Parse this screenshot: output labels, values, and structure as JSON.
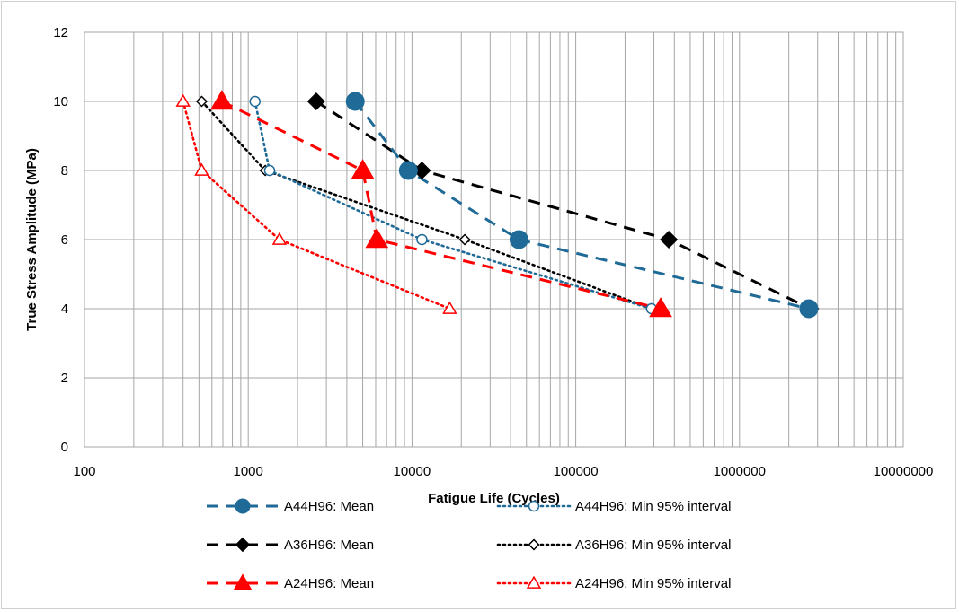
{
  "chart_data": {
    "type": "line",
    "title": "",
    "xlabel": "Fatigue Life (Cycles)",
    "ylabel": "True Stress Amplitude (MPa)",
    "xscale": "log",
    "xlim": [
      100,
      10000000
    ],
    "ylim": [
      0,
      12
    ],
    "x_ticks": [
      "100",
      "1000",
      "10000",
      "100000",
      "1000000",
      "10000000"
    ],
    "y_ticks": [
      "0",
      "2",
      "4",
      "6",
      "8",
      "10",
      "12"
    ],
    "grid": "on",
    "legend_position": "bottom",
    "series": [
      {
        "name": "A44H96: Mean",
        "color": "#1f6a96",
        "line": "dashed",
        "marker": "filled-circle",
        "points": [
          [
            4500,
            10
          ],
          [
            9500,
            8
          ],
          [
            45000,
            6
          ],
          [
            2650000,
            4
          ]
        ]
      },
      {
        "name": "A44H96: Min 95% interval",
        "color": "#1f6a96",
        "line": "dotted",
        "marker": "open-circle",
        "points": [
          [
            1100,
            10
          ],
          [
            1350,
            8
          ],
          [
            11500,
            6
          ],
          [
            290000,
            4
          ]
        ]
      },
      {
        "name": "A36H96:  Mean",
        "color": "#000000",
        "line": "dashed",
        "marker": "filled-diamond",
        "points": [
          [
            2600,
            10
          ],
          [
            11500,
            8
          ],
          [
            370000,
            6
          ],
          [
            2700000,
            4
          ]
        ]
      },
      {
        "name": "A36H96:  Min 95% interval",
        "color": "#000000",
        "line": "dotted",
        "marker": "open-diamond",
        "points": [
          [
            520,
            10
          ],
          [
            1270,
            8
          ],
          [
            21000,
            6
          ],
          [
            290000,
            4
          ]
        ]
      },
      {
        "name": "A24H96: Mean",
        "color": "#ff0000",
        "line": "dashed",
        "marker": "filled-triangle",
        "points": [
          [
            690,
            10
          ],
          [
            5000,
            8
          ],
          [
            6100,
            6
          ],
          [
            330000,
            4
          ]
        ]
      },
      {
        "name": "A24H96: Min 95% interval",
        "color": "#ff0000",
        "line": "dotted",
        "marker": "open-triangle",
        "points": [
          [
            400,
            10
          ],
          [
            520,
            8
          ],
          [
            1550,
            6
          ],
          [
            17000,
            4
          ]
        ]
      }
    ]
  }
}
